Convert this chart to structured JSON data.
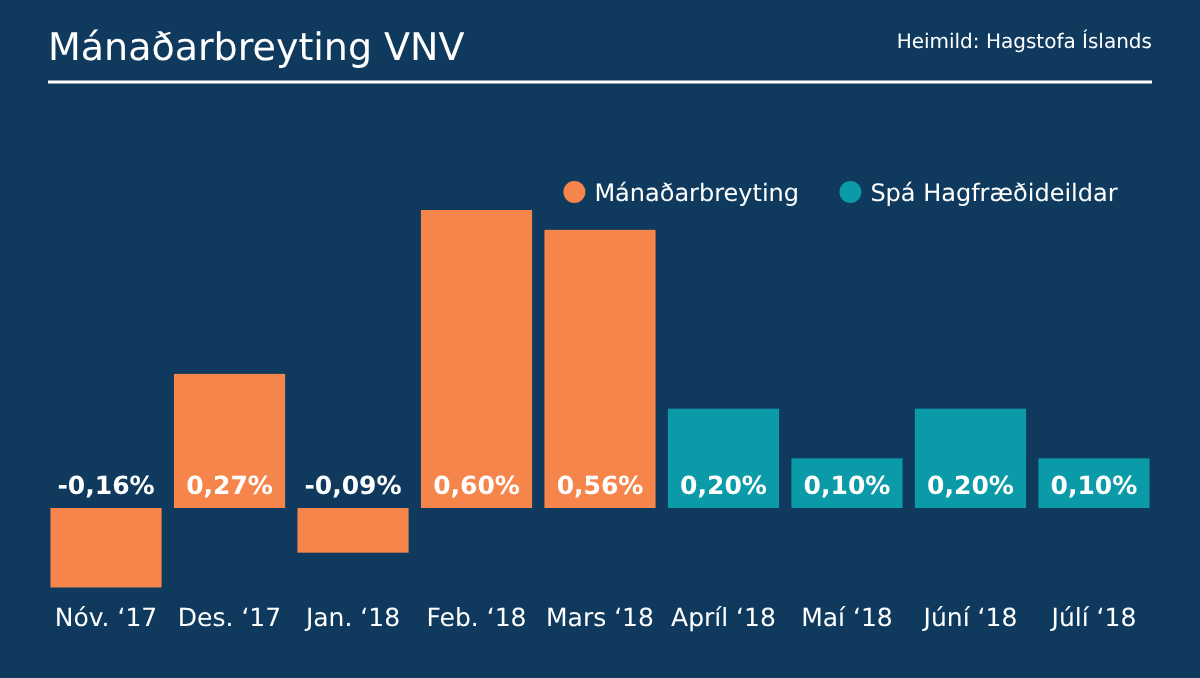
{
  "chart_data": {
    "type": "bar",
    "title": "Mánaðarbreyting VNV",
    "annotations": [
      "Heimild: Hagstofa Íslands"
    ],
    "categories": [
      "Nóv. ‘17",
      "Des. ‘17",
      "Jan. ‘18",
      "Feb. ‘18",
      "Mars ‘18",
      "Apríl ‘18",
      "Maí ‘18",
      "Júní ‘18",
      "Júlí ‘18"
    ],
    "legend": "top right",
    "series": [
      {
        "name": "Mánaðarbreyting",
        "color": "#f5854a",
        "values": [
          -0.16,
          0.27,
          -0.09,
          0.6,
          0.56,
          null,
          null,
          null,
          null
        ],
        "value_labels": [
          "-0,16%",
          "0,27%",
          "-0,09%",
          "0,60%",
          "0,56%",
          null,
          null,
          null,
          null
        ]
      },
      {
        "name": "Spá Hagfræðideildar",
        "color": "#0a9aa8",
        "values": [
          null,
          null,
          null,
          null,
          null,
          0.2,
          0.1,
          0.2,
          0.1
        ],
        "value_labels": [
          null,
          null,
          null,
          null,
          null,
          "0,20%",
          "0,10%",
          "0,20%",
          "0,10%"
        ]
      }
    ]
  }
}
